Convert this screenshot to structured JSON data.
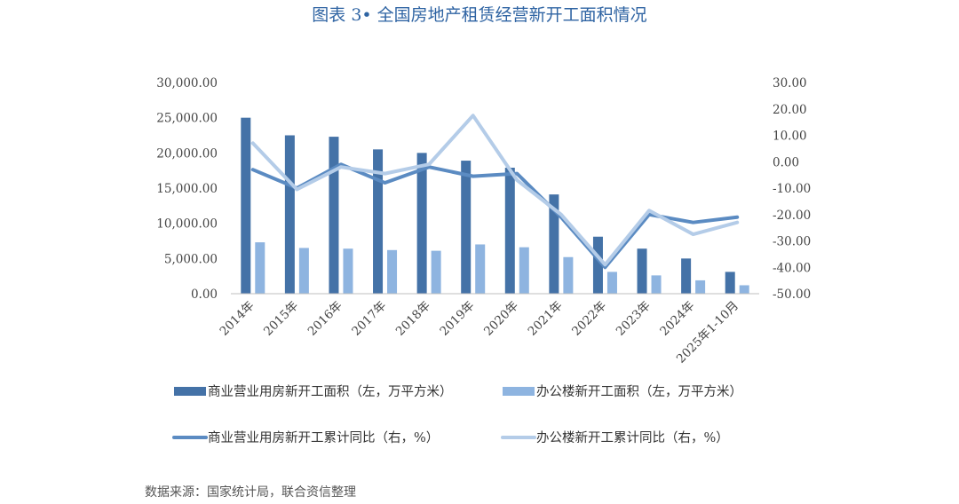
{
  "title": "图表 3• 全国房地产租赁经营新开工面积情况",
  "source": "数据来源：国家统计局，联合资信整理",
  "chart_data": {
    "type": "bar",
    "categories": [
      "2014年",
      "2015年",
      "2016年",
      "2017年",
      "2018年",
      "2019年",
      "2020年",
      "2021年",
      "2022年",
      "2023年",
      "2024年",
      "2025年1-10月"
    ],
    "series": [
      {
        "name": "商业营业用房新开工面积（左，万平方米）",
        "type": "bar",
        "axis": "left",
        "color": "#4472a7",
        "values": [
          25000,
          22500,
          22300,
          20500,
          20000,
          18900,
          17900,
          14100,
          8100,
          6400,
          5000,
          3100
        ]
      },
      {
        "name": "办公楼新开工面积（左，万平方米）",
        "type": "bar",
        "axis": "left",
        "color": "#8eb4e0",
        "values": [
          7300,
          6500,
          6400,
          6200,
          6100,
          7000,
          6600,
          5200,
          3100,
          2600,
          1900,
          1200
        ]
      },
      {
        "name": "商业营业用房新开工累计同比（右，%）",
        "type": "line",
        "axis": "right",
        "color": "#5b8bc2",
        "values": [
          -3.0,
          -10.0,
          -1.0,
          -8.0,
          -2.0,
          -5.5,
          -4.5,
          -21.0,
          -40.0,
          -20.0,
          -23.0,
          -21.0
        ]
      },
      {
        "name": "办公楼新开工累计同比（右，%）",
        "type": "line",
        "axis": "right",
        "color": "#b4cce8",
        "values": [
          7.0,
          -10.5,
          -2.0,
          -4.5,
          -1.0,
          17.5,
          -7.0,
          -20.0,
          -39.0,
          -18.5,
          -27.5,
          -23.0
        ]
      }
    ],
    "y_left": {
      "min": 0,
      "max": 30000,
      "step": 5000,
      "tick_labels": [
        "0.00",
        "5,000.00",
        "10,000.00",
        "15,000.00",
        "20,000.00",
        "25,000.00",
        "30,000.00"
      ]
    },
    "y_right": {
      "min": -50,
      "max": 30,
      "step": 10,
      "tick_labels": [
        "-50.00",
        "-40.00",
        "-30.00",
        "-20.00",
        "-10.00",
        "0.00",
        "10.00",
        "20.00",
        "30.00"
      ]
    },
    "grid": false,
    "legend": "bottom"
  }
}
